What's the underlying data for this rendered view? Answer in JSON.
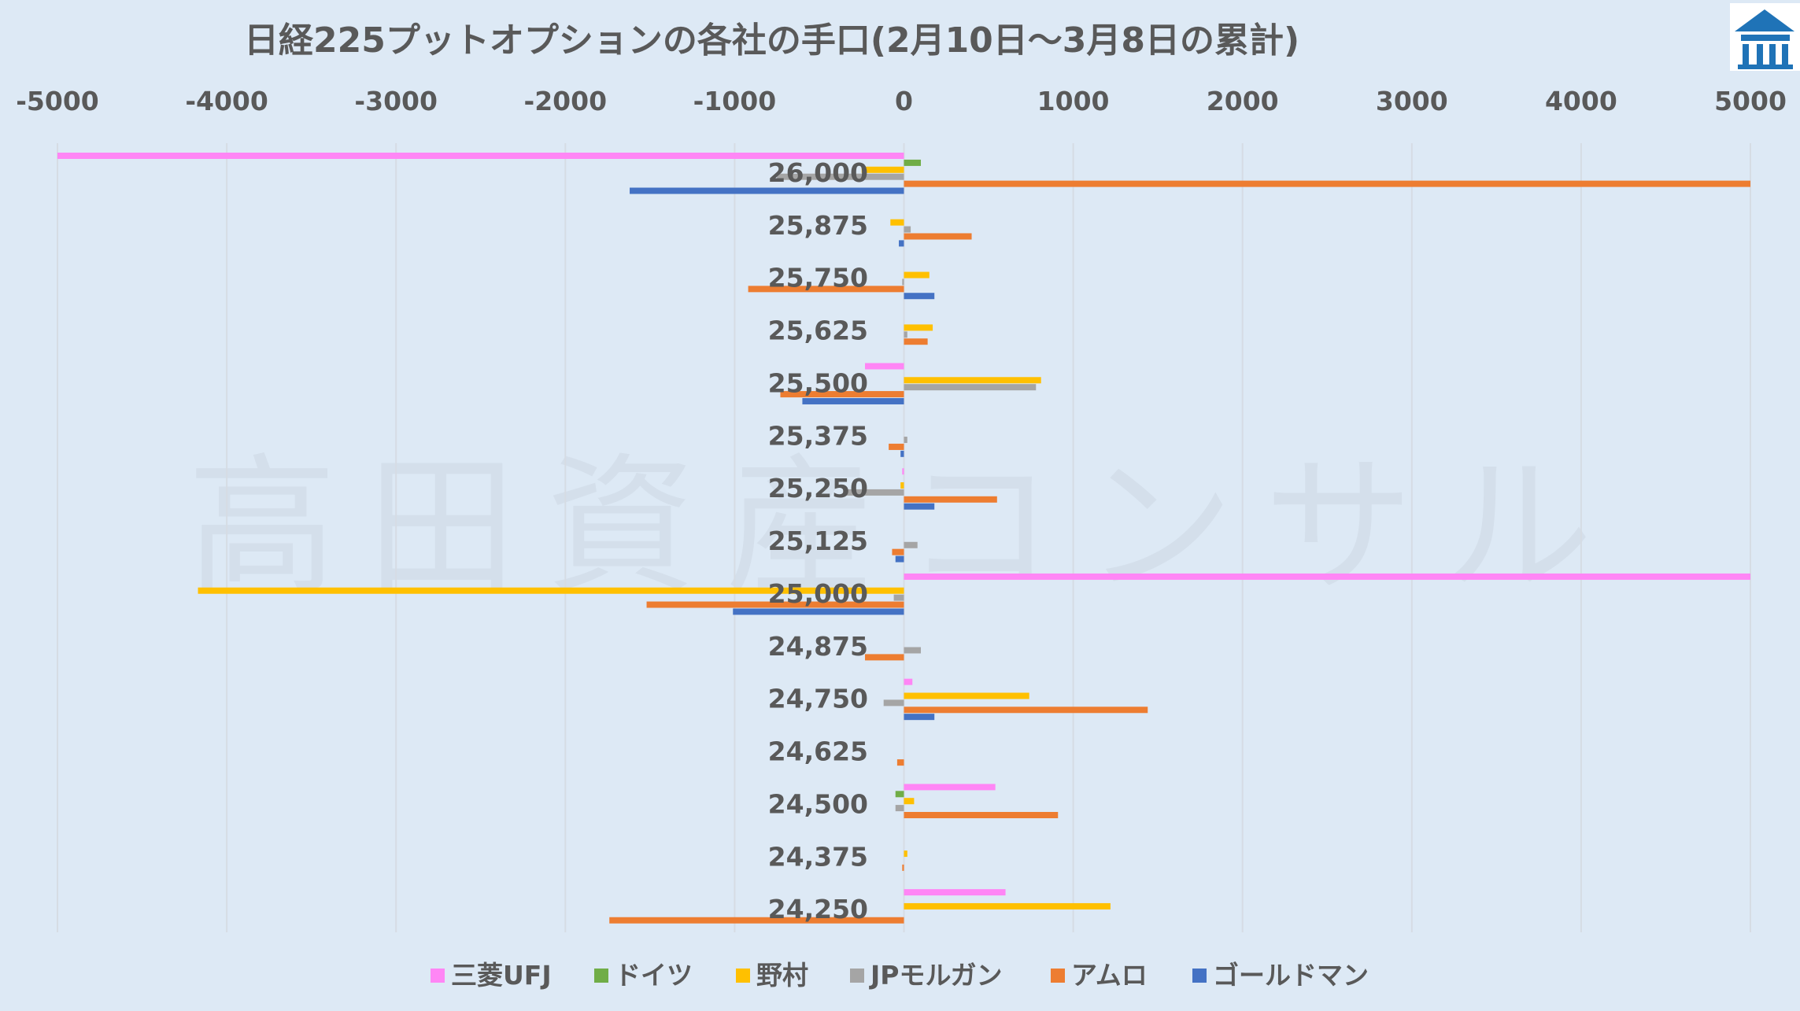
{
  "watermark": "高田資産コンサル",
  "logo": {
    "icon": "building-logo-icon",
    "color": "#1f73b7"
  },
  "chart_data": {
    "type": "bar",
    "orientation": "horizontal",
    "title": "日経225プットオプションの各社の手口(2月10日～3月8日の累計)",
    "xlabel": "",
    "ylabel": "",
    "xlim": [
      -5000,
      5000
    ],
    "x_ticks": [
      -5000,
      -4000,
      -3000,
      -2000,
      -1000,
      0,
      1000,
      2000,
      3000,
      4000,
      5000
    ],
    "x_axis_position": "top",
    "grid": true,
    "legend_position": "bottom",
    "categories": [
      "26,000",
      "25,875",
      "25,750",
      "25,625",
      "25,500",
      "25,375",
      "25,250",
      "25,125",
      "25,000",
      "24,875",
      "24,750",
      "24,625",
      "24,500",
      "24,375",
      "24,250"
    ],
    "series": [
      {
        "name": "三菱UFJ",
        "color": "#ff86f5",
        "values": [
          -5000,
          0,
          0,
          0,
          -230,
          0,
          -10,
          0,
          5000,
          0,
          50,
          0,
          540,
          0,
          600
        ]
      },
      {
        "name": "ドイツ",
        "color": "#70ad47",
        "values": [
          100,
          0,
          0,
          0,
          0,
          0,
          0,
          0,
          0,
          0,
          0,
          0,
          -50,
          0,
          0
        ]
      },
      {
        "name": "野村",
        "color": "#ffc000",
        "values": [
          -250,
          -80,
          150,
          170,
          810,
          0,
          -20,
          0,
          -4170,
          0,
          740,
          0,
          60,
          20,
          1220
        ]
      },
      {
        "name": "JPモルガン",
        "color": "#a5a5a5",
        "values": [
          -750,
          40,
          -10,
          20,
          780,
          20,
          -360,
          80,
          -60,
          100,
          -120,
          0,
          -50,
          0,
          0
        ]
      },
      {
        "name": "アムロ",
        "color": "#ed7d31",
        "values": [
          5000,
          400,
          -920,
          140,
          -730,
          -90,
          550,
          -70,
          -1520,
          -230,
          1440,
          -40,
          910,
          -10,
          -1740
        ]
      },
      {
        "name": "ゴールドマン",
        "color": "#4472c4",
        "values": [
          -1620,
          -30,
          180,
          0,
          -600,
          -20,
          180,
          -50,
          -1010,
          0,
          180,
          0,
          0,
          0,
          0
        ]
      }
    ]
  }
}
